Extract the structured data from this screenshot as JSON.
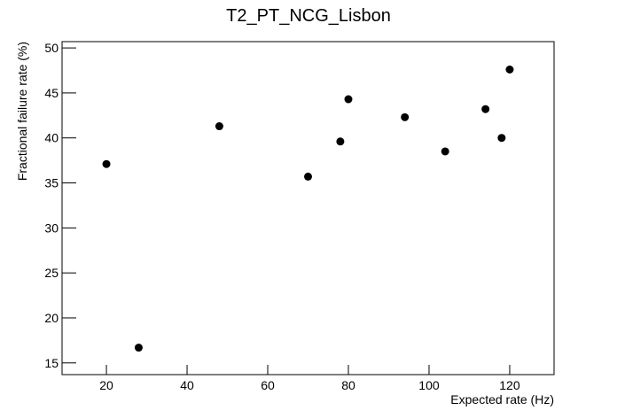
{
  "chart_data": {
    "type": "scatter",
    "title": "T2_PT_NCG_Lisbon",
    "x_label": "Expected rate (Hz)",
    "y_label": "Fractional failure rate (%)",
    "x": [
      20,
      28,
      48,
      70,
      78,
      80,
      94,
      104,
      114,
      118,
      120
    ],
    "values": [
      37.1,
      16.7,
      41.3,
      35.7,
      39.6,
      44.3,
      42.3,
      38.5,
      43.2,
      40.0,
      47.6
    ],
    "color": "#000000",
    "xlim": [
      9,
      131
    ],
    "ylim": [
      13.7,
      50.7
    ],
    "xticks": [
      20,
      40,
      60,
      80,
      100,
      120
    ],
    "yticks": [
      15,
      20,
      25,
      30,
      35,
      40,
      45,
      50
    ]
  }
}
